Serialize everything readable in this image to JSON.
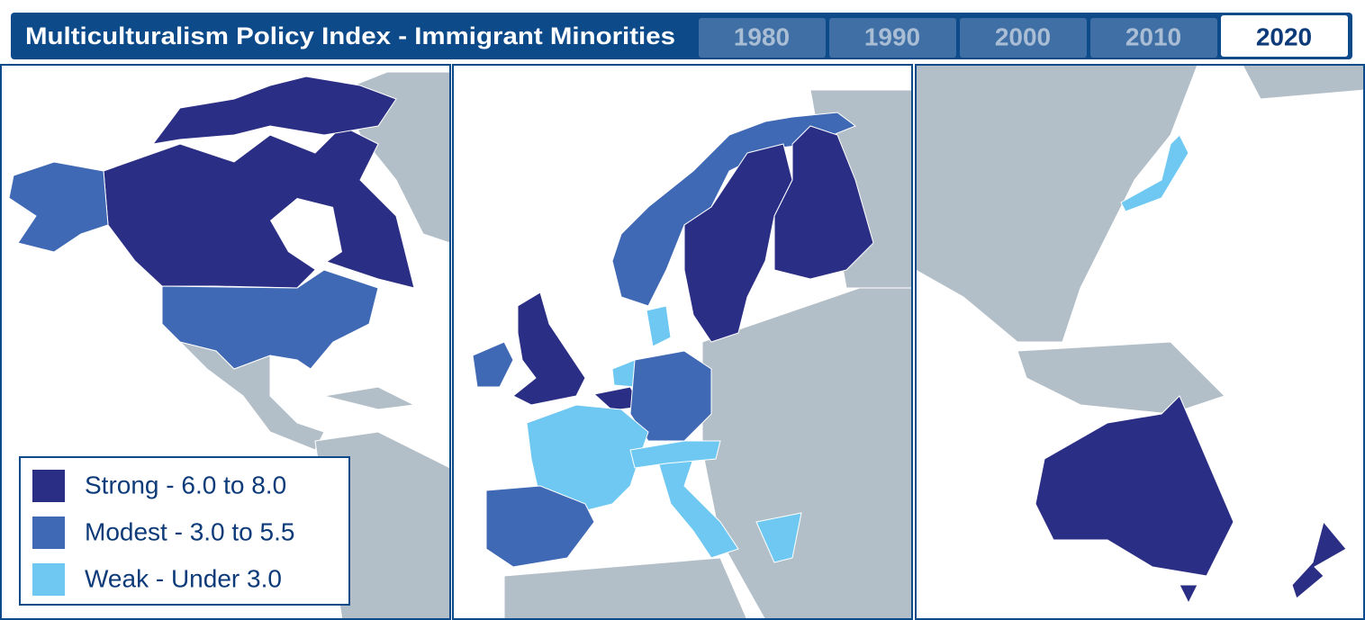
{
  "header": {
    "title": "Multiculturalism Policy Index - Immigrant Minorities",
    "tabs": [
      "1980",
      "1990",
      "2000",
      "2010",
      "2020"
    ],
    "selected_tab": 4
  },
  "legend": [
    {
      "label": "Strong - 6.0 to 8.0",
      "color": "#2b2e85"
    },
    {
      "label": "Modest - 3.0 to 5.5",
      "color": "#3f68b5"
    },
    {
      "label": "Weak - Under 3.0",
      "color": "#6ec8f2"
    }
  ]
}
